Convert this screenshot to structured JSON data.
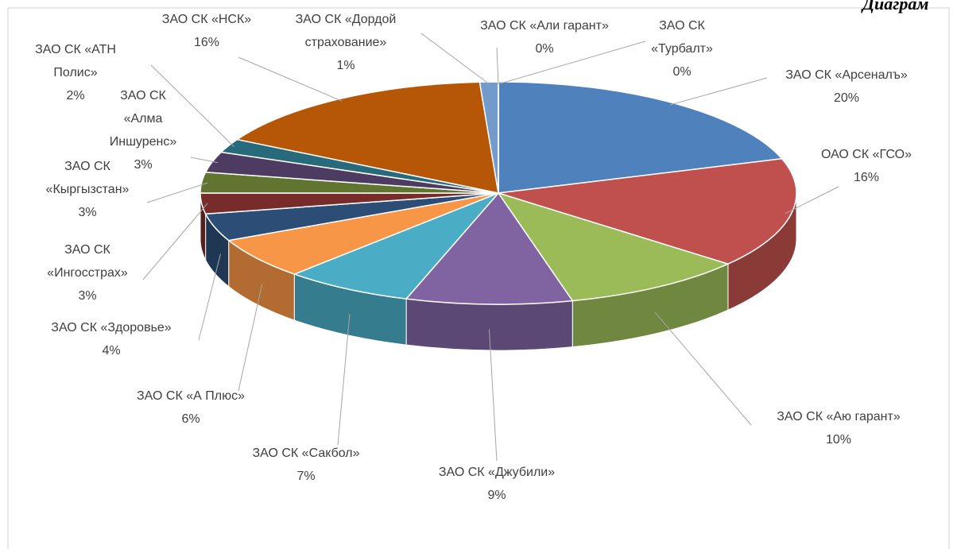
{
  "chart_data": {
    "type": "pie",
    "title": "Диаграм",
    "categories": [
      "ЗАО СК «Арсеналъ»",
      "ОАО СК «ГСО»",
      "ЗАО СК «Аю гарант»",
      "ЗАО СК «Джубили»",
      "ЗАО СК «Сакбол»",
      "ЗАО СК «А Плюс»",
      "ЗАО СК «Здоровье»",
      "ЗАО СК «Ингосстрах»",
      "ЗАО СК «Кыргызстан»",
      "ЗАО СК «Алма Иншуренс»",
      "ЗАО СК «АТН Полис»",
      "ЗАО СК «НСК»",
      "ЗАО СК «Дордой страхование»",
      "ЗАО СК «Али гарант»",
      "ЗАО СК «Турбалт»"
    ],
    "values": [
      20,
      16,
      10,
      9,
      7,
      6,
      4,
      3,
      3,
      3,
      2,
      16,
      1,
      0,
      0
    ],
    "value_labels": [
      "20%",
      "16%",
      "10%",
      "9%",
      "7%",
      "6%",
      "4%",
      "3%",
      "3%",
      "3%",
      "2%",
      "16%",
      "1%",
      "0%",
      "0%"
    ],
    "colors": [
      "#4f81bd",
      "#c0504d",
      "#9bbb59",
      "#8064a2",
      "#4bacc6",
      "#f79646",
      "#2c4d75",
      "#772c2a",
      "#5f7530",
      "#4d3b62",
      "#276a7c",
      "#b65708",
      "#729aca",
      "#d9534f",
      "#a5c26a"
    ]
  }
}
